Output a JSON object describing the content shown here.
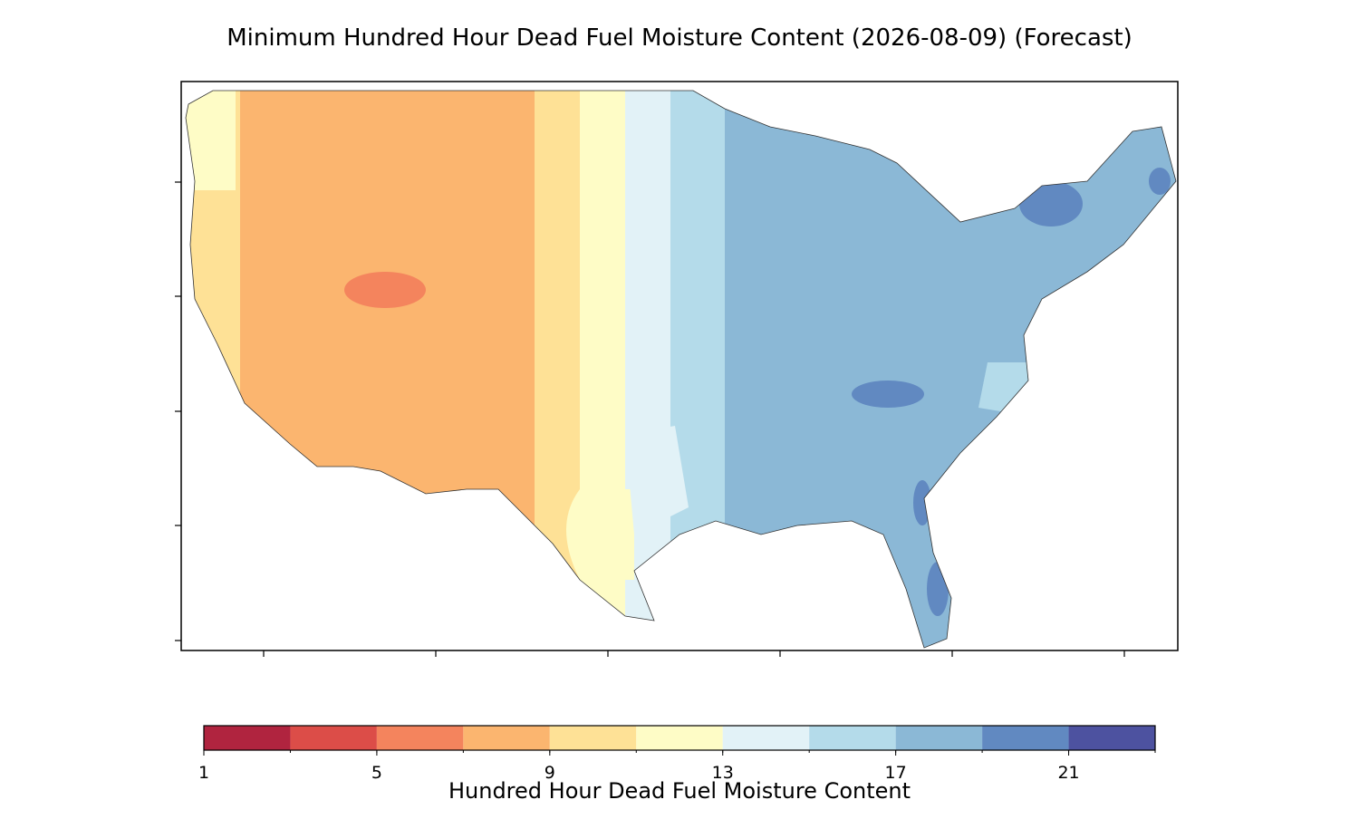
{
  "title": "Minimum Hundred Hour Dead Fuel Moisture Content (2026-08-09) (Forecast)",
  "colorbar": {
    "label": "Hundred Hour Dead Fuel Moisture Content",
    "lim": [
      1,
      23
    ],
    "levels": [
      1,
      3,
      5,
      7,
      9,
      11,
      13,
      15,
      17,
      19,
      21,
      23
    ],
    "colors": [
      "#b0243f",
      "#dc4d48",
      "#f4845d",
      "#fbb56f",
      "#fee196",
      "#fefcc6",
      "#e2f2f7",
      "#b4dbea",
      "#8bb8d6",
      "#6189c1",
      "#4d52a0"
    ],
    "ticks": [
      1,
      5,
      9,
      13,
      17,
      21
    ]
  }
}
